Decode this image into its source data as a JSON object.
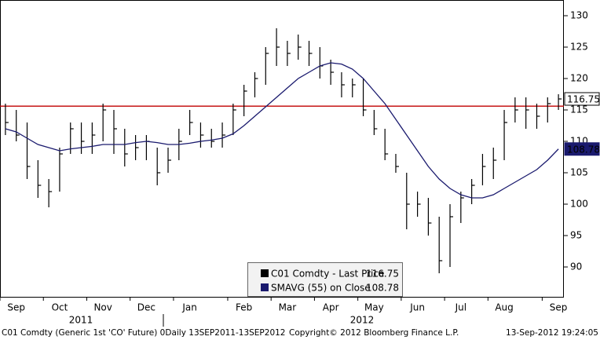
{
  "chart_data": {
    "type": "ohlc",
    "categories": [
      "Sep",
      null,
      null,
      null,
      "Oct",
      null,
      null,
      null,
      "Nov",
      null,
      null,
      null,
      "Dec",
      null,
      null,
      null,
      "Jan",
      null,
      null,
      null,
      null,
      "Feb",
      null,
      null,
      null,
      "Mar",
      null,
      null,
      null,
      "Apr",
      null,
      null,
      null,
      "May",
      null,
      null,
      null,
      "Jun",
      null,
      null,
      null,
      "Jul",
      null,
      null,
      null,
      "Aug",
      null,
      null,
      null,
      null,
      "Sep",
      null
    ],
    "year_labels": [
      "2011",
      "2012"
    ],
    "series": [
      {
        "name": "C01 Comdty - Last Price",
        "color": "#000000",
        "high": [
          116,
          115,
          113,
          107,
          104,
          109,
          113,
          113,
          113,
          116,
          115,
          112,
          111,
          111,
          109,
          109,
          112,
          115,
          113,
          112,
          113,
          116,
          119,
          121,
          125,
          128,
          126,
          127,
          126,
          125,
          123,
          121,
          120,
          120,
          115,
          112,
          108,
          105,
          102,
          101,
          98,
          100,
          102,
          104,
          108,
          109,
          115,
          117,
          117,
          116,
          117,
          117.5
        ],
        "low": [
          111,
          110,
          104,
          101,
          99.5,
          102,
          108,
          108,
          108,
          110,
          108,
          106,
          107,
          107,
          103,
          105,
          107,
          111,
          109,
          109,
          109,
          111,
          114,
          117,
          119,
          122,
          122,
          123,
          122,
          120,
          119,
          117,
          117,
          114,
          111,
          107,
          105,
          96,
          98,
          95,
          89,
          90,
          97,
          100,
          103,
          104,
          107,
          113,
          112,
          112,
          113,
          115
        ],
        "close": [
          113,
          111,
          106,
          103,
          102,
          108,
          112,
          110,
          111,
          115,
          112,
          108,
          109,
          110,
          105,
          107,
          110,
          113,
          111,
          110,
          111,
          115,
          118,
          120,
          124,
          125,
          124,
          125,
          124,
          122,
          121,
          119,
          119,
          115,
          112,
          108,
          106,
          100,
          100,
          97,
          91,
          98,
          101,
          103,
          106,
          107,
          113,
          115,
          115,
          114,
          116,
          116.75
        ]
      },
      {
        "name": "SMAVG (55) on Close",
        "type": "line",
        "color": "#1a1a6e",
        "values": [
          112,
          111.5,
          110.5,
          109.5,
          109,
          108.5,
          108.8,
          109,
          109.2,
          109.5,
          109.5,
          109.5,
          109.8,
          110,
          109.8,
          109.5,
          109.5,
          109.7,
          110,
          110.2,
          110.5,
          111.2,
          112.5,
          114,
          115.5,
          117,
          118.5,
          120,
          121,
          122,
          122.5,
          122.3,
          121.5,
          120,
          118,
          116,
          113.5,
          111,
          108.5,
          106,
          104,
          102.5,
          101.5,
          101,
          101,
          101.5,
          102.5,
          103.5,
          104.5,
          105.5,
          107,
          108.78
        ]
      }
    ],
    "hline": {
      "value": 115.6,
      "color": "#c00000"
    },
    "ylim": [
      85.25,
      132.5
    ],
    "yticks": [
      90,
      95,
      100,
      105,
      110,
      115,
      120,
      125,
      130
    ],
    "grid": false,
    "footer": [
      "C01 Comdty (Generic 1st 'CO' Future) 0Daily 13SEP2011-13SEP2012",
      "Copyright© 2012 Bloomberg Finance L.P.",
      "13-Sep-2012 19:24:05"
    ]
  }
}
